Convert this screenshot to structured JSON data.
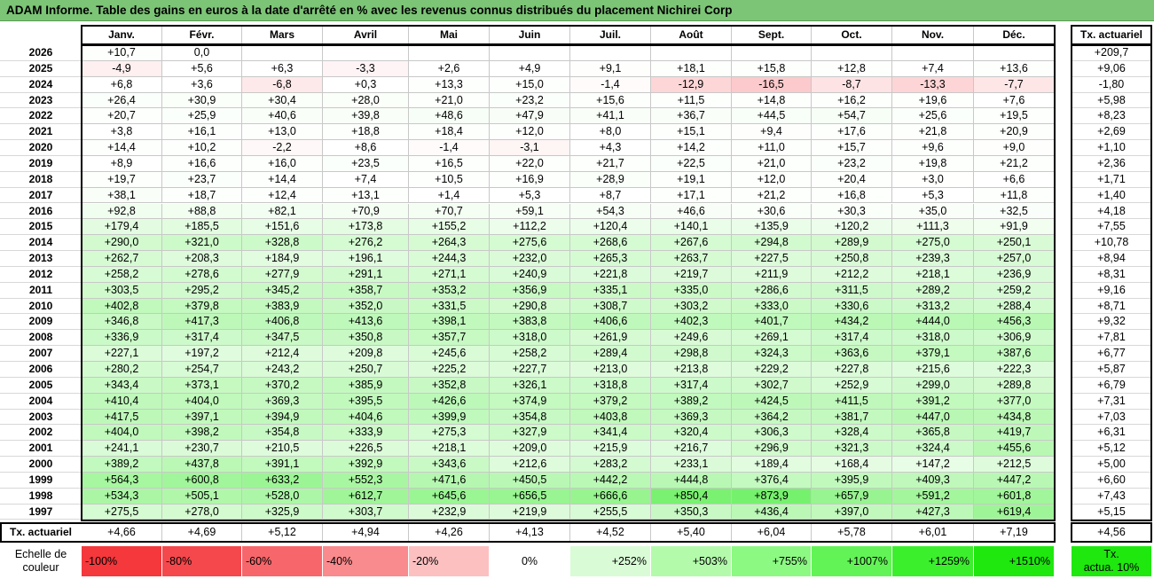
{
  "title": "ADAM Informe. Table des gains en euros à la date d'arrêté en % avec les revenus connus distribués du placement Nichirei Corp",
  "chart_data": {
    "type": "heatmap",
    "title": "ADAM Informe. Table des gains en euros à la date d'arrêté en % avec les revenus connus distribués du placement Nichirei Corp",
    "columns": [
      "Janv.",
      "Févr.",
      "Mars",
      "Avril",
      "Mai",
      "Juin",
      "Juil.",
      "Août",
      "Sept.",
      "Oct.",
      "Nov.",
      "Déc."
    ],
    "rate_column_header": "Tx. actuariel",
    "rows": [
      {
        "year": "2026",
        "values": [
          "+10,7",
          "0,0",
          "",
          "",
          "",
          "",
          "",
          "",
          "",
          "",
          "",
          ""
        ],
        "rate": "+209,7"
      },
      {
        "year": "2025",
        "values": [
          "-4,9",
          "+5,6",
          "+6,3",
          "-3,3",
          "+2,6",
          "+4,9",
          "+9,1",
          "+18,1",
          "+15,8",
          "+12,8",
          "+7,4",
          "+13,6"
        ],
        "rate": "+9,06"
      },
      {
        "year": "2024",
        "values": [
          "+6,8",
          "+3,6",
          "-6,8",
          "+0,3",
          "+13,3",
          "+15,0",
          "-1,4",
          "-12,9",
          "-16,5",
          "-8,7",
          "-13,3",
          "-7,7"
        ],
        "rate": "-1,80"
      },
      {
        "year": "2023",
        "values": [
          "+26,4",
          "+30,9",
          "+30,4",
          "+28,0",
          "+21,0",
          "+23,2",
          "+15,6",
          "+11,5",
          "+14,8",
          "+16,2",
          "+19,6",
          "+7,6"
        ],
        "rate": "+5,98"
      },
      {
        "year": "2022",
        "values": [
          "+20,7",
          "+25,9",
          "+40,6",
          "+39,8",
          "+48,6",
          "+47,9",
          "+41,1",
          "+36,7",
          "+44,5",
          "+54,7",
          "+25,6",
          "+19,5"
        ],
        "rate": "+8,23"
      },
      {
        "year": "2021",
        "values": [
          "+3,8",
          "+16,1",
          "+13,0",
          "+18,8",
          "+18,4",
          "+12,0",
          "+8,0",
          "+15,1",
          "+9,4",
          "+17,6",
          "+21,8",
          "+20,9"
        ],
        "rate": "+2,69"
      },
      {
        "year": "2020",
        "values": [
          "+14,4",
          "+10,2",
          "-2,2",
          "+8,6",
          "-1,4",
          "-3,1",
          "+4,3",
          "+14,2",
          "+11,0",
          "+15,7",
          "+9,6",
          "+9,0"
        ],
        "rate": "+1,10"
      },
      {
        "year": "2019",
        "values": [
          "+8,9",
          "+16,6",
          "+16,0",
          "+23,5",
          "+16,5",
          "+22,0",
          "+21,7",
          "+22,5",
          "+21,0",
          "+23,2",
          "+19,8",
          "+21,2"
        ],
        "rate": "+2,36"
      },
      {
        "year": "2018",
        "values": [
          "+19,7",
          "+23,7",
          "+14,4",
          "+7,4",
          "+10,5",
          "+16,9",
          "+28,9",
          "+19,1",
          "+12,0",
          "+20,4",
          "+3,0",
          "+6,6"
        ],
        "rate": "+1,71"
      },
      {
        "year": "2017",
        "values": [
          "+38,1",
          "+18,7",
          "+12,4",
          "+13,1",
          "+1,4",
          "+5,3",
          "+8,7",
          "+17,1",
          "+21,2",
          "+16,8",
          "+5,3",
          "+11,8"
        ],
        "rate": "+1,40"
      },
      {
        "year": "2016",
        "values": [
          "+92,8",
          "+88,8",
          "+82,1",
          "+70,9",
          "+70,7",
          "+59,1",
          "+54,3",
          "+46,6",
          "+30,6",
          "+30,3",
          "+35,0",
          "+32,5"
        ],
        "rate": "+4,18"
      },
      {
        "year": "2015",
        "values": [
          "+179,4",
          "+185,5",
          "+151,6",
          "+173,8",
          "+155,2",
          "+112,2",
          "+120,4",
          "+140,1",
          "+135,9",
          "+120,2",
          "+111,3",
          "+91,9"
        ],
        "rate": "+7,55"
      },
      {
        "year": "2014",
        "values": [
          "+290,0",
          "+321,0",
          "+328,8",
          "+276,2",
          "+264,3",
          "+275,6",
          "+268,6",
          "+267,6",
          "+294,8",
          "+289,9",
          "+275,0",
          "+250,1"
        ],
        "rate": "+10,78"
      },
      {
        "year": "2013",
        "values": [
          "+262,7",
          "+208,3",
          "+184,9",
          "+196,1",
          "+244,3",
          "+232,0",
          "+265,3",
          "+263,7",
          "+227,5",
          "+250,8",
          "+239,3",
          "+257,0"
        ],
        "rate": "+8,94"
      },
      {
        "year": "2012",
        "values": [
          "+258,2",
          "+278,6",
          "+277,9",
          "+291,1",
          "+271,1",
          "+240,9",
          "+221,8",
          "+219,7",
          "+211,9",
          "+212,2",
          "+218,1",
          "+236,9"
        ],
        "rate": "+8,31"
      },
      {
        "year": "2011",
        "values": [
          "+303,5",
          "+295,2",
          "+345,2",
          "+358,7",
          "+353,2",
          "+356,9",
          "+335,1",
          "+335,0",
          "+286,6",
          "+311,5",
          "+289,2",
          "+259,2"
        ],
        "rate": "+9,16"
      },
      {
        "year": "2010",
        "values": [
          "+402,8",
          "+379,8",
          "+383,9",
          "+352,0",
          "+331,5",
          "+290,8",
          "+308,7",
          "+303,2",
          "+333,0",
          "+330,6",
          "+313,2",
          "+288,4"
        ],
        "rate": "+8,71"
      },
      {
        "year": "2009",
        "values": [
          "+346,8",
          "+417,3",
          "+406,8",
          "+413,6",
          "+398,1",
          "+383,8",
          "+406,6",
          "+402,3",
          "+401,7",
          "+434,2",
          "+444,0",
          "+456,3"
        ],
        "rate": "+9,32"
      },
      {
        "year": "2008",
        "values": [
          "+336,9",
          "+317,4",
          "+347,5",
          "+350,8",
          "+357,7",
          "+318,0",
          "+261,9",
          "+249,6",
          "+269,1",
          "+317,4",
          "+318,0",
          "+306,9"
        ],
        "rate": "+7,81"
      },
      {
        "year": "2007",
        "values": [
          "+227,1",
          "+197,2",
          "+212,4",
          "+209,8",
          "+245,6",
          "+258,2",
          "+289,4",
          "+298,8",
          "+324,3",
          "+363,6",
          "+379,1",
          "+387,6"
        ],
        "rate": "+6,77"
      },
      {
        "year": "2006",
        "values": [
          "+280,2",
          "+254,7",
          "+243,2",
          "+250,7",
          "+225,2",
          "+227,7",
          "+213,0",
          "+213,8",
          "+229,2",
          "+227,8",
          "+215,6",
          "+222,3"
        ],
        "rate": "+5,87"
      },
      {
        "year": "2005",
        "values": [
          "+343,4",
          "+373,1",
          "+370,2",
          "+385,9",
          "+352,8",
          "+326,1",
          "+318,8",
          "+317,4",
          "+302,7",
          "+252,9",
          "+299,0",
          "+289,8"
        ],
        "rate": "+6,79"
      },
      {
        "year": "2004",
        "values": [
          "+410,4",
          "+404,0",
          "+369,3",
          "+395,5",
          "+426,6",
          "+374,9",
          "+379,2",
          "+389,2",
          "+424,5",
          "+411,5",
          "+391,2",
          "+377,0"
        ],
        "rate": "+7,31"
      },
      {
        "year": "2003",
        "values": [
          "+417,5",
          "+397,1",
          "+394,9",
          "+404,6",
          "+399,9",
          "+354,8",
          "+403,8",
          "+369,3",
          "+364,2",
          "+381,7",
          "+447,0",
          "+434,8"
        ],
        "rate": "+7,03"
      },
      {
        "year": "2002",
        "values": [
          "+404,0",
          "+398,2",
          "+354,8",
          "+333,9",
          "+275,3",
          "+327,9",
          "+341,4",
          "+320,4",
          "+306,3",
          "+328,4",
          "+365,8",
          "+419,7"
        ],
        "rate": "+6,31"
      },
      {
        "year": "2001",
        "values": [
          "+241,1",
          "+230,7",
          "+210,5",
          "+226,5",
          "+218,1",
          "+209,0",
          "+215,9",
          "+216,7",
          "+296,9",
          "+321,3",
          "+324,4",
          "+455,6"
        ],
        "rate": "+5,12"
      },
      {
        "year": "2000",
        "values": [
          "+389,2",
          "+437,8",
          "+391,1",
          "+392,9",
          "+343,6",
          "+212,6",
          "+283,2",
          "+233,1",
          "+189,4",
          "+168,4",
          "+147,2",
          "+212,5"
        ],
        "rate": "+5,00"
      },
      {
        "year": "1999",
        "values": [
          "+564,3",
          "+600,8",
          "+633,2",
          "+552,3",
          "+471,6",
          "+450,5",
          "+442,2",
          "+444,8",
          "+376,4",
          "+395,9",
          "+409,3",
          "+447,2"
        ],
        "rate": "+6,60"
      },
      {
        "year": "1998",
        "values": [
          "+534,3",
          "+505,1",
          "+528,0",
          "+612,7",
          "+645,6",
          "+656,5",
          "+666,6",
          "+850,4",
          "+873,9",
          "+657,9",
          "+591,2",
          "+601,8"
        ],
        "rate": "+7,43"
      },
      {
        "year": "1997",
        "values": [
          "+275,5",
          "+278,0",
          "+325,9",
          "+303,7",
          "+232,9",
          "+219,9",
          "+255,5",
          "+350,3",
          "+436,4",
          "+397,0",
          "+427,3",
          "+619,4"
        ],
        "rate": "+5,15"
      }
    ],
    "footer": {
      "label": "Tx. actuariel",
      "values": [
        "+4,66",
        "+4,69",
        "+5,12",
        "+4,94",
        "+4,26",
        "+4,13",
        "+4,52",
        "+5,40",
        "+6,04",
        "+5,78",
        "+6,01",
        "+7,19"
      ],
      "rate": "+4,56"
    },
    "scale": {
      "label": "Echelle de couleur",
      "items": [
        {
          "text": "-100%",
          "color": "#f4383c"
        },
        {
          "text": "-80%",
          "color": "#f5484c"
        },
        {
          "text": "-60%",
          "color": "#f7666a"
        },
        {
          "text": "-40%",
          "color": "#f98a8d"
        },
        {
          "text": "-20%",
          "color": "#fcc0c1"
        },
        {
          "text": "0%",
          "color": "#ffffff"
        },
        {
          "text": "+252%",
          "color": "#d9fcd6"
        },
        {
          "text": "+503%",
          "color": "#b3fbab"
        },
        {
          "text": "+755%",
          "color": "#8cf983"
        },
        {
          "text": "+1007%",
          "color": "#62f456"
        },
        {
          "text": "+1259%",
          "color": "#3cef2d"
        },
        {
          "text": "+1510%",
          "color": "#1ee80e"
        }
      ],
      "rate_legend": {
        "text": "Tx. actua. 10%",
        "color": "#1ee80e"
      }
    }
  }
}
